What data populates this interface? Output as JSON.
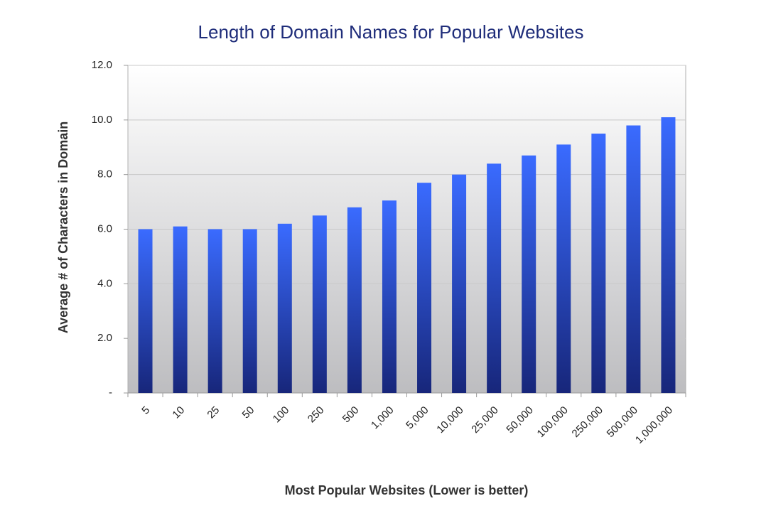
{
  "chart_data": {
    "type": "bar",
    "title": "Length of Domain Names for Popular Websites",
    "x_label": "Most Popular Websites (Lower is better)",
    "y_label": "Average # of Characters in Domain",
    "categories": [
      "5",
      "10",
      "25",
      "50",
      "100",
      "250",
      "500",
      "1,000",
      "5,000",
      "10,000",
      "25,000",
      "50,000",
      "100,000",
      "250,000",
      "500,000",
      "1,000,000"
    ],
    "values": [
      6.0,
      6.1,
      6.0,
      6.0,
      6.2,
      6.5,
      6.8,
      7.05,
      7.7,
      8.0,
      8.4,
      8.7,
      9.1,
      9.5,
      9.8,
      10.1
    ],
    "color": "#3a6bff",
    "ylim": [
      0,
      12
    ],
    "yticks": [
      {
        "value": 0,
        "label": "-"
      },
      {
        "value": 2,
        "label": "2.0"
      },
      {
        "value": 4,
        "label": "4.0"
      },
      {
        "value": 6,
        "label": "6.0"
      },
      {
        "value": 8,
        "label": "8.0"
      },
      {
        "value": 10,
        "label": "10.0"
      },
      {
        "value": 12,
        "label": "12.0"
      }
    ],
    "grid": true
  }
}
